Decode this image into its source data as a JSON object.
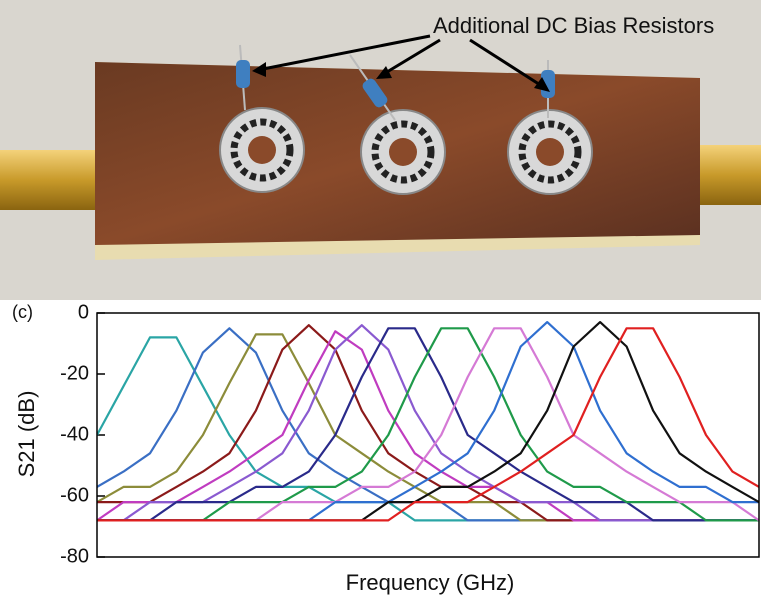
{
  "photo": {
    "annotation": "Additional DC Bias Resistors"
  },
  "chart_data": {
    "type": "line",
    "panel_label": "(c)",
    "xlabel": "Frequency (GHz)",
    "ylabel": "S21 (dB)",
    "x": [
      0,
      4,
      8,
      12,
      16,
      20,
      24,
      28,
      32,
      36,
      40,
      44,
      48,
      52,
      56,
      60,
      64,
      68,
      72,
      76,
      80,
      84,
      88,
      92,
      96,
      100
    ],
    "xlim": [
      0,
      100
    ],
    "ylim": [
      -80,
      0
    ],
    "yticks": [
      0,
      -20,
      -40,
      -60,
      -80
    ],
    "series": [
      {
        "color": "#2aa5a5",
        "values": [
          -40,
          -24,
          -8,
          -8,
          -24,
          -40,
          -52,
          -57,
          -57,
          -62,
          -62,
          -62,
          -68,
          -68,
          -68,
          -68,
          -68,
          -68,
          -68,
          -68,
          -68,
          -68,
          -68,
          -68,
          -68,
          -68
        ]
      },
      {
        "color": "#3a6fc4",
        "values": [
          -57,
          -52,
          -46,
          -32,
          -13,
          -5,
          -13,
          -32,
          -46,
          -52,
          -57,
          -62,
          -62,
          -62,
          -68,
          -68,
          -68,
          -68,
          -68,
          -68,
          -68,
          -68,
          -68,
          -68,
          -68,
          -68
        ]
      },
      {
        "color": "#8c8c3a",
        "values": [
          -62,
          -57,
          -57,
          -52,
          -40,
          -23,
          -7,
          -7,
          -23,
          -40,
          -46,
          -52,
          -57,
          -62,
          -62,
          -62,
          -68,
          -68,
          -68,
          -68,
          -68,
          -68,
          -68,
          -68,
          -68,
          -68
        ]
      },
      {
        "color": "#8b1a1a",
        "values": [
          -62,
          -62,
          -62,
          -57,
          -52,
          -46,
          -32,
          -12,
          -4,
          -12,
          -32,
          -46,
          -52,
          -57,
          -57,
          -62,
          -62,
          -68,
          -68,
          -68,
          -68,
          -68,
          -68,
          -68,
          -68,
          -68
        ]
      },
      {
        "color": "#c03cc0",
        "values": [
          -68,
          -62,
          -62,
          -62,
          -57,
          -52,
          -46,
          -40,
          -22,
          -6,
          -12,
          -32,
          -46,
          -52,
          -57,
          -57,
          -62,
          -62,
          -68,
          -68,
          -68,
          -68,
          -68,
          -68,
          -68,
          -68
        ]
      },
      {
        "color": "#8a5ad0",
        "values": [
          -68,
          -68,
          -62,
          -62,
          -62,
          -57,
          -52,
          -46,
          -32,
          -12,
          -4,
          -12,
          -32,
          -46,
          -52,
          -57,
          -62,
          -62,
          -62,
          -68,
          -68,
          -68,
          -68,
          -68,
          -68,
          -68
        ]
      },
      {
        "color": "#2a2a8a",
        "values": [
          -68,
          -68,
          -68,
          -62,
          -62,
          -62,
          -57,
          -57,
          -52,
          -40,
          -21,
          -5,
          -5,
          -21,
          -40,
          -46,
          -52,
          -57,
          -62,
          -62,
          -62,
          -68,
          -68,
          -68,
          -68,
          -68
        ]
      },
      {
        "color": "#1f9a4a",
        "values": [
          -68,
          -68,
          -68,
          -68,
          -68,
          -62,
          -62,
          -62,
          -57,
          -57,
          -52,
          -40,
          -21,
          -5,
          -5,
          -21,
          -40,
          -52,
          -57,
          -57,
          -62,
          -62,
          -62,
          -68,
          -68,
          -68
        ]
      },
      {
        "color": "#d57ad5",
        "values": [
          -68,
          -68,
          -68,
          -68,
          -68,
          -68,
          -68,
          -62,
          -62,
          -62,
          -57,
          -57,
          -52,
          -40,
          -21,
          -5,
          -5,
          -21,
          -40,
          -46,
          -52,
          -57,
          -62,
          -62,
          -62,
          -68
        ]
      },
      {
        "color": "#2f6fd0",
        "values": [
          -68,
          -68,
          -68,
          -68,
          -68,
          -68,
          -68,
          -68,
          -68,
          -62,
          -62,
          -62,
          -57,
          -52,
          -46,
          -32,
          -11,
          -3,
          -11,
          -32,
          -46,
          -52,
          -57,
          -57,
          -62,
          -62
        ]
      },
      {
        "color": "#111111",
        "values": [
          -68,
          -68,
          -68,
          -68,
          -68,
          -68,
          -68,
          -68,
          -68,
          -68,
          -68,
          -62,
          -62,
          -57,
          -57,
          -52,
          -46,
          -32,
          -11,
          -3,
          -11,
          -32,
          -46,
          -52,
          -57,
          -62
        ]
      },
      {
        "color": "#e02020",
        "values": [
          -68,
          -68,
          -68,
          -68,
          -68,
          -68,
          -68,
          -68,
          -68,
          -68,
          -68,
          -68,
          -62,
          -62,
          -62,
          -57,
          -52,
          -46,
          -40,
          -21,
          -5,
          -5,
          -21,
          -40,
          -52,
          -57
        ]
      }
    ]
  }
}
